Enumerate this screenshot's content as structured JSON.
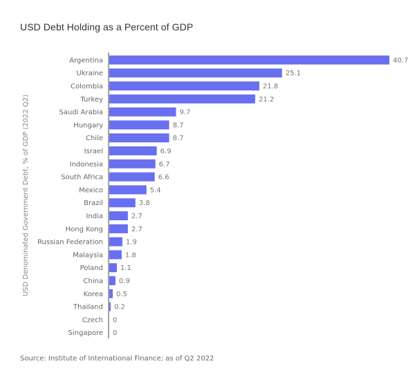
{
  "chart_data": {
    "type": "bar",
    "orientation": "horizontal",
    "title": "USD Debt Holding as a Percent of GDP",
    "xlabel": "",
    "ylabel": "USD Denominated Government Debt, % of GDP (2022 Q2)",
    "source": "Source: Institute of International Finance; as of Q2 2022",
    "categories": [
      "Argentina",
      "Ukraine",
      "Colombia",
      "Turkey",
      "Saudi Arabia",
      "Hungary",
      "Chile",
      "Israel",
      "Indonesia",
      "South Africa",
      "Mexico",
      "Brazil",
      "India",
      "Hong Kong",
      "Russian Federation",
      "Malaysia",
      "Poland",
      "China",
      "Korea",
      "Thailand",
      "Czech",
      "Singapore"
    ],
    "values": [
      40.7,
      25.1,
      21.8,
      21.2,
      9.7,
      8.7,
      8.7,
      6.9,
      6.7,
      6.6,
      5.4,
      3.8,
      2.7,
      2.7,
      1.9,
      1.8,
      1.1,
      0.9,
      0.5,
      0.2,
      0,
      0
    ],
    "value_labels": [
      "40.7",
      "25.1",
      "21.8",
      "21.2",
      "9.7",
      "8.7",
      "8.7",
      "6.9",
      "6.7",
      "6.6",
      "5.4",
      "3.8",
      "2.7",
      "2.7",
      "1.9",
      "1.8",
      "1.1",
      "0.9",
      "0.5",
      "0.2",
      "0",
      "0"
    ],
    "xlim": [
      0,
      40.7
    ],
    "grid": false,
    "legend": "none",
    "bar_color": "#6870F0"
  }
}
